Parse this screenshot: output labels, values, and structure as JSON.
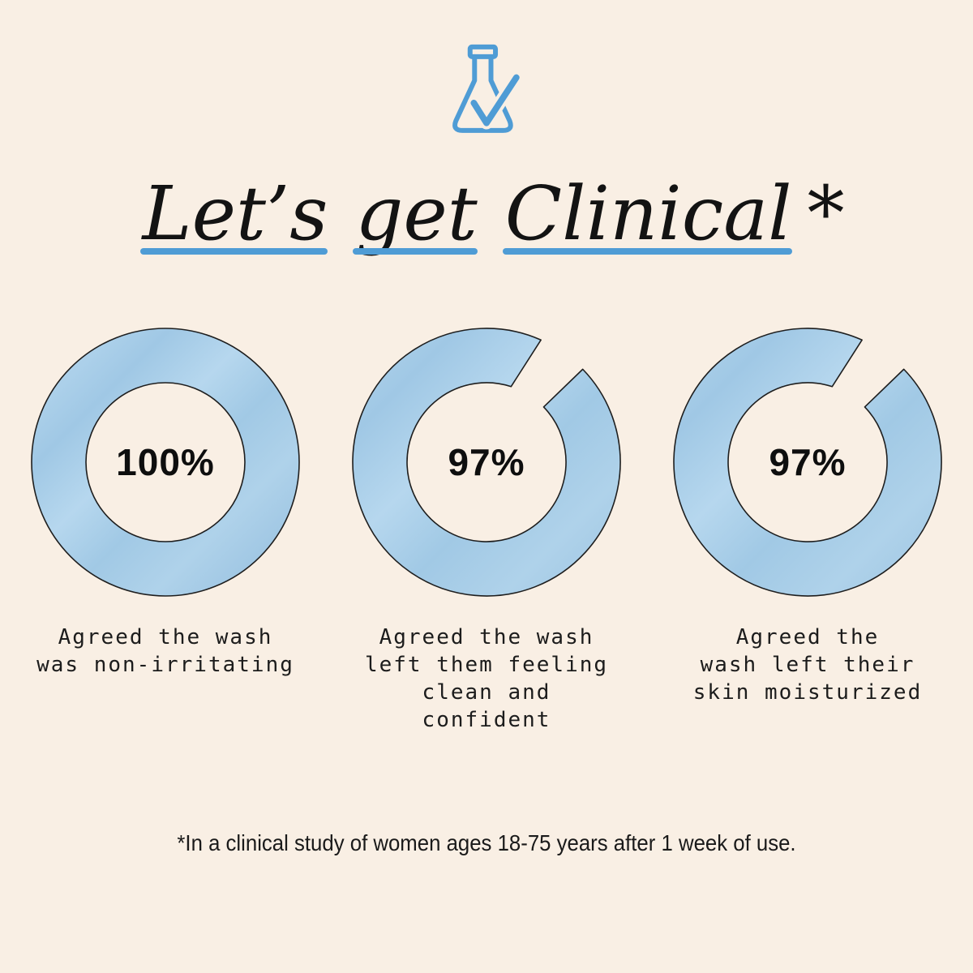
{
  "theme": {
    "background": "#f9efe4",
    "accent_blue": "#4f9cd5",
    "ring_fill": "#a7cce8",
    "ring_outline": "#1e1e1e",
    "text_color": "#151515"
  },
  "header": {
    "icon": "flask-checkmark-icon",
    "title_words": [
      "Let’s",
      "get",
      "Clinical"
    ],
    "asterisk": "*"
  },
  "chart_data": {
    "type": "pie",
    "subtype": "donut-small-multiples",
    "title": "Let’s get Clinical*",
    "unit": "%",
    "series": [
      {
        "name": "Agreed the wash was non-irritating",
        "value": 100
      },
      {
        "name": "Agreed the wash left them feeling clean and confident",
        "value": 97
      },
      {
        "name": "Agreed the wash left their skin moisturized",
        "value": 97
      }
    ],
    "legend_position": "below-each-donut",
    "footnote": "*In a clinical study of women ages 18-75 years after 1 week of use."
  },
  "stats": [
    {
      "value": "100%",
      "percent": 100,
      "caption_lines": [
        "Agreed the wash",
        "was non-irritating"
      ]
    },
    {
      "value": "97%",
      "percent": 97,
      "caption_lines": [
        "Agreed the wash",
        "left them feeling",
        "clean and confident"
      ]
    },
    {
      "value": "97%",
      "percent": 97,
      "caption_lines": [
        "Agreed the",
        "wash left their",
        "skin moisturized"
      ]
    }
  ],
  "footnote": "*In a clinical study of women ages 18-75 years after 1 week of use."
}
